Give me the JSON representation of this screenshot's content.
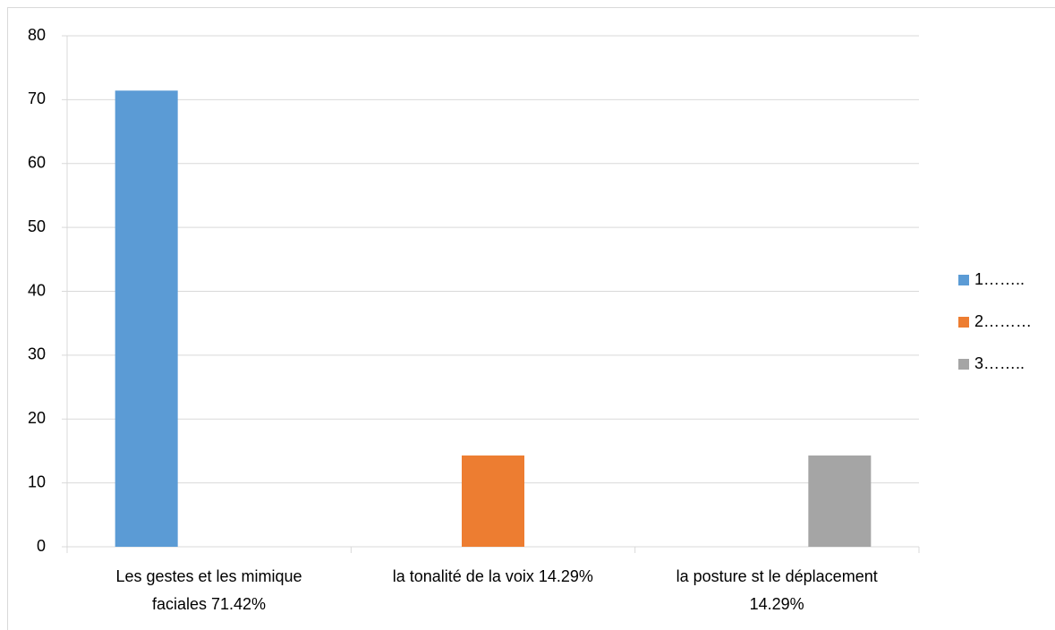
{
  "chart_data": {
    "type": "bar",
    "categories": [
      "Les gestes et les mimique\nfaciales 71.42%",
      "la tonalité de la voix 14.29%",
      "la posture st le déplacement\n14.29%"
    ],
    "series": [
      {
        "name": "1……..",
        "color": "#5b9bd5",
        "values": [
          71.42,
          null,
          null
        ]
      },
      {
        "name": "2………",
        "color": "#ed7d31",
        "values": [
          null,
          14.29,
          null
        ]
      },
      {
        "name": "3……..",
        "color": "#a5a5a5",
        "values": [
          null,
          null,
          14.29
        ]
      }
    ],
    "ylim": [
      0,
      80
    ],
    "yticks": [
      0,
      10,
      20,
      30,
      40,
      50,
      60,
      70,
      80
    ],
    "grid": true,
    "legend": "right"
  }
}
